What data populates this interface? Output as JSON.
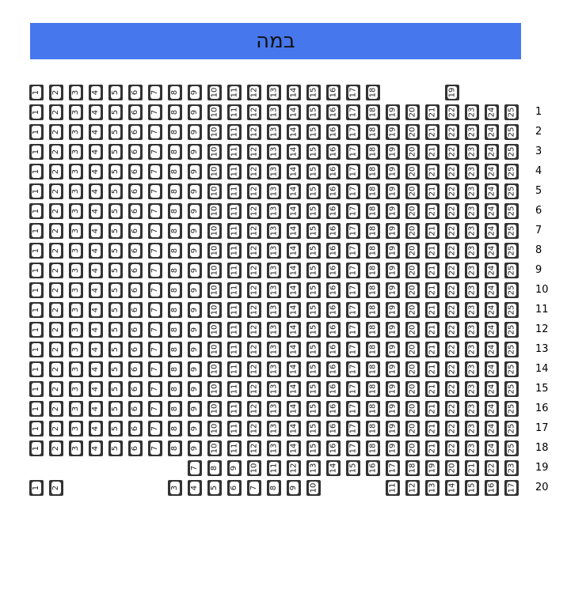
{
  "stage": {
    "label": "במה",
    "color": "#4677ec"
  },
  "rows": [
    {
      "label": "",
      "seats": [
        1,
        2,
        3,
        4,
        5,
        6,
        7,
        8,
        9,
        10,
        11,
        12,
        13,
        14,
        15,
        16,
        17,
        18,
        null,
        null,
        null,
        19
      ]
    },
    {
      "label": "1",
      "seats": [
        1,
        2,
        3,
        4,
        5,
        6,
        7,
        8,
        9,
        10,
        11,
        12,
        13,
        14,
        15,
        16,
        17,
        18,
        19,
        20,
        21,
        22,
        23,
        24,
        25
      ]
    },
    {
      "label": "2",
      "seats": [
        1,
        2,
        3,
        4,
        5,
        6,
        7,
        8,
        9,
        10,
        11,
        12,
        13,
        14,
        15,
        16,
        17,
        18,
        19,
        20,
        21,
        22,
        23,
        24,
        25
      ]
    },
    {
      "label": "3",
      "seats": [
        1,
        2,
        3,
        4,
        5,
        6,
        7,
        8,
        9,
        10,
        11,
        12,
        13,
        14,
        15,
        16,
        17,
        18,
        19,
        20,
        21,
        22,
        23,
        24,
        25
      ]
    },
    {
      "label": "4",
      "seats": [
        1,
        2,
        3,
        4,
        5,
        6,
        7,
        8,
        9,
        10,
        11,
        12,
        13,
        14,
        15,
        16,
        17,
        18,
        19,
        20,
        21,
        22,
        23,
        24,
        25
      ]
    },
    {
      "label": "5",
      "seats": [
        1,
        2,
        3,
        4,
        5,
        6,
        7,
        8,
        9,
        10,
        11,
        12,
        13,
        14,
        15,
        16,
        17,
        18,
        19,
        20,
        21,
        22,
        23,
        24,
        25
      ]
    },
    {
      "label": "6",
      "seats": [
        1,
        2,
        3,
        4,
        5,
        6,
        7,
        8,
        9,
        10,
        11,
        12,
        13,
        14,
        15,
        16,
        17,
        18,
        19,
        20,
        21,
        22,
        23,
        24,
        25
      ]
    },
    {
      "label": "7",
      "seats": [
        1,
        2,
        3,
        4,
        5,
        6,
        7,
        8,
        9,
        10,
        11,
        12,
        13,
        14,
        15,
        16,
        17,
        18,
        19,
        20,
        21,
        22,
        23,
        24,
        25
      ]
    },
    {
      "label": "8",
      "seats": [
        1,
        2,
        3,
        4,
        5,
        6,
        7,
        8,
        9,
        10,
        11,
        12,
        13,
        14,
        15,
        16,
        17,
        18,
        19,
        20,
        21,
        22,
        23,
        24,
        25
      ]
    },
    {
      "label": "9",
      "seats": [
        1,
        2,
        3,
        4,
        5,
        6,
        7,
        8,
        9,
        10,
        11,
        12,
        13,
        14,
        15,
        16,
        17,
        18,
        19,
        20,
        21,
        22,
        23,
        24,
        25
      ]
    },
    {
      "label": "10",
      "seats": [
        1,
        2,
        3,
        4,
        5,
        6,
        7,
        8,
        9,
        10,
        11,
        12,
        13,
        14,
        15,
        16,
        17,
        18,
        19,
        20,
        21,
        22,
        23,
        24,
        25
      ]
    },
    {
      "label": "11",
      "seats": [
        1,
        2,
        3,
        4,
        5,
        6,
        7,
        8,
        9,
        10,
        11,
        12,
        13,
        14,
        15,
        16,
        17,
        18,
        19,
        20,
        21,
        22,
        23,
        24,
        25
      ]
    },
    {
      "label": "12",
      "seats": [
        1,
        2,
        3,
        4,
        5,
        6,
        7,
        8,
        9,
        10,
        11,
        12,
        13,
        14,
        15,
        16,
        17,
        18,
        19,
        20,
        21,
        22,
        23,
        24,
        25
      ]
    },
    {
      "label": "13",
      "seats": [
        1,
        2,
        3,
        4,
        5,
        6,
        7,
        8,
        9,
        10,
        11,
        12,
        13,
        14,
        15,
        16,
        17,
        18,
        19,
        20,
        21,
        22,
        23,
        24,
        25
      ]
    },
    {
      "label": "14",
      "seats": [
        1,
        2,
        3,
        4,
        5,
        6,
        7,
        8,
        9,
        10,
        11,
        12,
        13,
        14,
        15,
        16,
        17,
        18,
        19,
        20,
        21,
        22,
        23,
        24,
        25
      ]
    },
    {
      "label": "15",
      "seats": [
        1,
        2,
        3,
        4,
        5,
        6,
        7,
        8,
        9,
        10,
        11,
        12,
        13,
        14,
        15,
        16,
        17,
        18,
        19,
        20,
        21,
        22,
        23,
        24,
        25
      ]
    },
    {
      "label": "16",
      "seats": [
        1,
        2,
        3,
        4,
        5,
        6,
        7,
        8,
        9,
        10,
        11,
        12,
        13,
        14,
        15,
        16,
        17,
        18,
        19,
        20,
        21,
        22,
        23,
        24,
        25
      ]
    },
    {
      "label": "17",
      "seats": [
        1,
        2,
        3,
        4,
        5,
        6,
        7,
        8,
        9,
        10,
        11,
        12,
        13,
        14,
        15,
        16,
        17,
        18,
        19,
        20,
        21,
        22,
        23,
        24,
        25
      ]
    },
    {
      "label": "18",
      "seats": [
        1,
        2,
        3,
        4,
        5,
        6,
        7,
        8,
        9,
        10,
        11,
        12,
        13,
        14,
        15,
        16,
        17,
        18,
        19,
        20,
        21,
        22,
        23,
        24,
        25
      ]
    },
    {
      "label": "19",
      "seats": [
        null,
        null,
        null,
        null,
        null,
        null,
        null,
        null,
        7,
        8,
        9,
        10,
        11,
        12,
        13,
        14,
        15,
        16,
        17,
        18,
        19,
        20,
        21,
        22,
        23
      ]
    },
    {
      "label": "20",
      "seats": [
        1,
        2,
        null,
        null,
        null,
        null,
        null,
        3,
        4,
        5,
        6,
        7,
        8,
        9,
        10,
        null,
        null,
        null,
        11,
        12,
        13,
        14,
        15,
        16,
        17
      ]
    }
  ]
}
